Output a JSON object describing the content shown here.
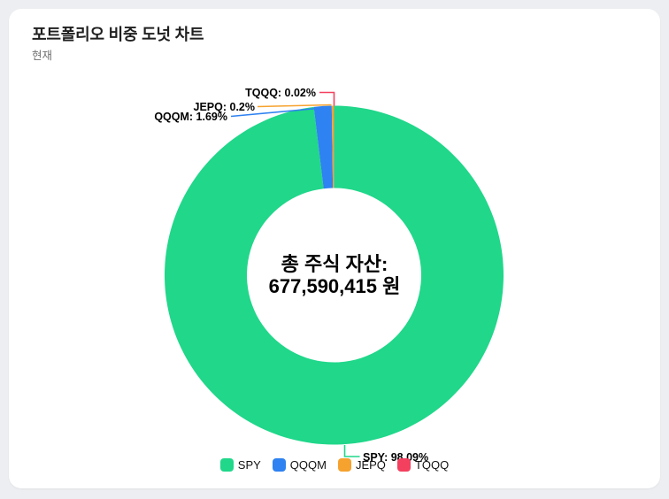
{
  "chart_data": {
    "type": "pie",
    "variant": "doughnut",
    "title": "포트폴리오 비중 도넛 차트",
    "subtitle": "현재",
    "labels": [
      "SPY",
      "QQQM",
      "JEPQ",
      "TQQQ"
    ],
    "values": [
      98.09,
      1.69,
      0.2,
      0.02
    ],
    "unit": "percent",
    "colors": [
      "#20D78A",
      "#2E82F1",
      "#F6A22E",
      "#F4405F"
    ],
    "callout_labels": [
      "SPY: 98.09%",
      "QQQM: 1.69%",
      "JEPQ: 0.2%",
      "TQQQ: 0.02%"
    ],
    "center_label": {
      "line1": "총 주식 자산:",
      "line2": "677,590,415 원"
    },
    "legend": {
      "position": "bottom",
      "entries": [
        "SPY",
        "QQQM",
        "JEPQ",
        "TQQQ"
      ]
    },
    "cutout": "51%",
    "start_angle_deg": 0,
    "direction": "clockwise",
    "background_color": "#FFFFFF",
    "page_background_color": "#ECEEF1"
  }
}
